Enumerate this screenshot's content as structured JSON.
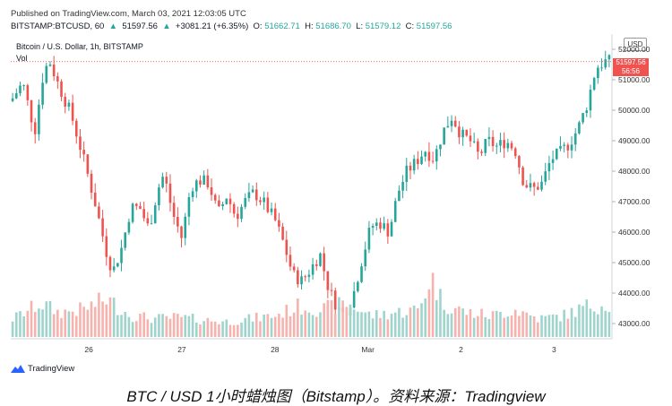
{
  "header": {
    "published": "Published on TradingView.com, March 03, 2021 12:03:05 UTC",
    "symbol_prefix": "BITSTAMP:BTCUSD, 60",
    "last": "51597.56",
    "change": "+3081.21 (+6.35%)",
    "ohlc": [
      {
        "key": "O:",
        "value": "51662.71"
      },
      {
        "key": "H:",
        "value": "51686.70"
      },
      {
        "key": "L:",
        "value": "51579.12"
      },
      {
        "key": "C:",
        "value": "51597.56"
      }
    ]
  },
  "legend": {
    "title": "Bitcoin / U.S. Dollar, 1h, BITSTAMP",
    "vol": "Vol"
  },
  "currency_badge": "USD",
  "price_tag": {
    "price": "51597.56",
    "countdown": "56:56"
  },
  "footer": {
    "logo_text": "TradingView",
    "caption": "BTC / USD 1小时蜡烛图（Bitstamp）。资料来源：Tradingview"
  },
  "colors": {
    "up": "#26a69a",
    "down": "#ef5350",
    "vol_up": "#9fd4cd",
    "vol_down": "#f7b2ae",
    "logo": "#2962ff"
  },
  "chart_data": {
    "type": "candlestick",
    "title": "Bitcoin / U.S. Dollar, 1h, BITSTAMP",
    "y_ticks": [
      "52000.00",
      "51000.00",
      "50000.00",
      "49000.00",
      "48000.00",
      "47000.00",
      "46000.00",
      "45000.00",
      "44000.00",
      "43000.00"
    ],
    "y_tick_values": [
      52000,
      51000,
      50000,
      49000,
      48000,
      47000,
      46000,
      45000,
      44000,
      43000
    ],
    "x_ticks": [
      {
        "label": "26",
        "t": 0.13
      },
      {
        "label": "27",
        "t": 0.285
      },
      {
        "label": "28",
        "t": 0.44
      },
      {
        "label": "Mar",
        "t": 0.595
      },
      {
        "label": "2",
        "t": 0.75
      },
      {
        "label": "3",
        "t": 0.905
      }
    ],
    "ylim": [
      42500,
      52500
    ],
    "last_price": 51597.56,
    "close_path": [
      [
        0.0,
        50300
      ],
      [
        0.02,
        50900
      ],
      [
        0.04,
        49300
      ],
      [
        0.055,
        51300
      ],
      [
        0.065,
        51600
      ],
      [
        0.08,
        50800
      ],
      [
        0.1,
        49900
      ],
      [
        0.12,
        48500
      ],
      [
        0.14,
        47000
      ],
      [
        0.16,
        45300
      ],
      [
        0.17,
        44700
      ],
      [
        0.185,
        45500
      ],
      [
        0.2,
        46800
      ],
      [
        0.215,
        46800
      ],
      [
        0.23,
        46100
      ],
      [
        0.245,
        47400
      ],
      [
        0.255,
        47900
      ],
      [
        0.27,
        46600
      ],
      [
        0.285,
        45800
      ],
      [
        0.3,
        47500
      ],
      [
        0.315,
        47700
      ],
      [
        0.33,
        47600
      ],
      [
        0.345,
        46600
      ],
      [
        0.36,
        47200
      ],
      [
        0.375,
        46500
      ],
      [
        0.39,
        47000
      ],
      [
        0.405,
        47300
      ],
      [
        0.42,
        47000
      ],
      [
        0.44,
        46400
      ],
      [
        0.455,
        45600
      ],
      [
        0.47,
        44600
      ],
      [
        0.485,
        44400
      ],
      [
        0.5,
        44800
      ],
      [
        0.515,
        45300
      ],
      [
        0.53,
        44100
      ],
      [
        0.545,
        43500
      ],
      [
        0.555,
        43300
      ],
      [
        0.57,
        43900
      ],
      [
        0.585,
        45100
      ],
      [
        0.6,
        46200
      ],
      [
        0.615,
        46300
      ],
      [
        0.63,
        46000
      ],
      [
        0.645,
        47300
      ],
      [
        0.66,
        48000
      ],
      [
        0.675,
        48300
      ],
      [
        0.69,
        48700
      ],
      [
        0.705,
        48400
      ],
      [
        0.72,
        49300
      ],
      [
        0.735,
        49800
      ],
      [
        0.75,
        49200
      ],
      [
        0.765,
        49000
      ],
      [
        0.78,
        48500
      ],
      [
        0.795,
        49000
      ],
      [
        0.81,
        48800
      ],
      [
        0.825,
        49000
      ],
      [
        0.84,
        48700
      ],
      [
        0.855,
        47600
      ],
      [
        0.87,
        47400
      ],
      [
        0.885,
        47600
      ],
      [
        0.9,
        48400
      ],
      [
        0.915,
        48600
      ],
      [
        0.93,
        48900
      ],
      [
        0.945,
        49400
      ],
      [
        0.96,
        50200
      ],
      [
        0.975,
        51400
      ],
      [
        0.99,
        51600
      ],
      [
        1.0,
        51597.56
      ]
    ],
    "volume_profile": [
      [
        0.0,
        0.28
      ],
      [
        0.05,
        0.55
      ],
      [
        0.08,
        0.4
      ],
      [
        0.12,
        0.45
      ],
      [
        0.16,
        0.62
      ],
      [
        0.2,
        0.35
      ],
      [
        0.24,
        0.3
      ],
      [
        0.28,
        0.32
      ],
      [
        0.32,
        0.28
      ],
      [
        0.36,
        0.25
      ],
      [
        0.4,
        0.3
      ],
      [
        0.44,
        0.35
      ],
      [
        0.48,
        0.5
      ],
      [
        0.52,
        0.45
      ],
      [
        0.56,
        0.55
      ],
      [
        0.6,
        0.35
      ],
      [
        0.64,
        0.4
      ],
      [
        0.68,
        0.45
      ],
      [
        0.7,
        1.0
      ],
      [
        0.72,
        0.55
      ],
      [
        0.76,
        0.4
      ],
      [
        0.8,
        0.35
      ],
      [
        0.84,
        0.45
      ],
      [
        0.88,
        0.3
      ],
      [
        0.92,
        0.35
      ],
      [
        0.96,
        0.5
      ],
      [
        1.0,
        0.55
      ]
    ]
  }
}
